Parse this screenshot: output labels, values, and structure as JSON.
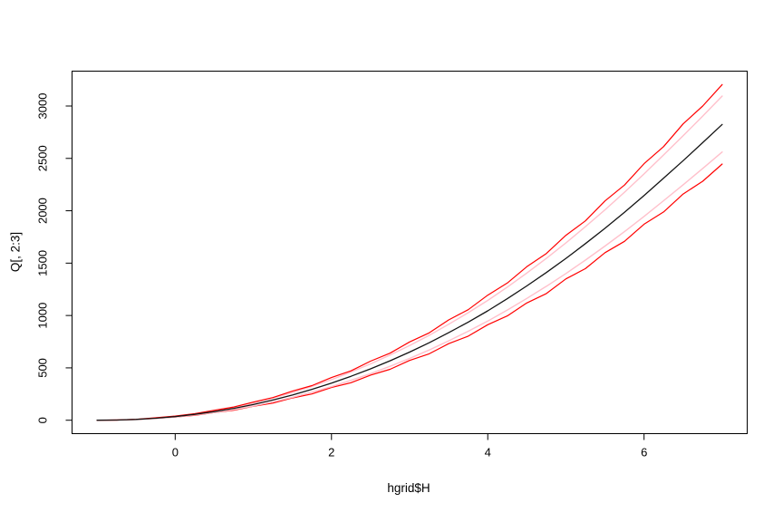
{
  "figure": {
    "background": "#ffffff",
    "box_color": "#000000",
    "tick_color": "#000000"
  },
  "chart_data": {
    "type": "line",
    "title": "",
    "xlabel": "hgrid$H",
    "ylabel": "Q[, 2:3]",
    "x_ticks": [
      0,
      2,
      4,
      6
    ],
    "y_ticks": [
      0,
      500,
      1000,
      1500,
      2000,
      2500,
      3000
    ],
    "xlim": [
      -1.32,
      7.32
    ],
    "ylim": [
      -128,
      3333
    ],
    "grid": false,
    "legend": "none",
    "x": [
      -1.0,
      -0.75,
      -0.5,
      -0.25,
      0.0,
      0.25,
      0.5,
      0.75,
      1.0,
      1.25,
      1.5,
      1.75,
      2.0,
      2.25,
      2.5,
      2.75,
      3.0,
      3.25,
      3.5,
      3.75,
      4.0,
      4.25,
      4.5,
      4.75,
      5.0,
      5.25,
      5.5,
      5.75,
      6.0,
      6.25,
      6.5,
      6.75,
      7.0
    ],
    "series": [
      {
        "name": "lower-outer-quantile",
        "color": "#ff0000",
        "width": 1.2,
        "values": [
          0,
          2,
          7,
          17,
          30,
          47,
          73,
          96,
          133,
          164,
          213,
          251,
          312,
          358,
          431,
          486,
          571,
          634,
          731,
          803,
          912,
          996,
          1120,
          1210,
          1350,
          1448,
          1600,
          1708,
          1872,
          1988,
          2160,
          2282,
          2446
        ]
      },
      {
        "name": "lower-inner-quantile",
        "color": "#ffc0cb",
        "width": 1.4,
        "values": [
          0,
          2,
          7,
          17,
          32,
          51,
          74,
          102,
          136,
          175,
          219,
          268,
          321,
          381,
          445,
          515,
          590,
          671,
          758,
          850,
          947,
          1052,
          1163,
          1279,
          1401,
          1529,
          1663,
          1801,
          1946,
          2096,
          2248,
          2404,
          2561
        ]
      },
      {
        "name": "upper-inner-quantile",
        "color": "#ffc0cb",
        "width": 1.4,
        "values": [
          0,
          2,
          9,
          21,
          38,
          61,
          90,
          124,
          164,
          212,
          264,
          323,
          388,
          460,
          538,
          623,
          713,
          811,
          916,
          1027,
          1144,
          1271,
          1405,
          1545,
          1693,
          1848,
          2009,
          2177,
          2352,
          2533,
          2716,
          2904,
          3095
        ]
      },
      {
        "name": "upper-outer-quantile",
        "color": "#ff0000",
        "width": 1.2,
        "values": [
          0,
          2,
          9,
          23,
          40,
          62,
          95,
          126,
          173,
          216,
          278,
          331,
          408,
          472,
          564,
          640,
          748,
          834,
          958,
          1056,
          1194,
          1310,
          1466,
          1592,
          1766,
          1904,
          2094,
          2245,
          2450,
          2612,
          2829,
          3000,
          3205
        ]
      },
      {
        "name": "center-line",
        "color": "#141414",
        "width": 1.3,
        "values": [
          0,
          2,
          8,
          19,
          35,
          56,
          82,
          113,
          150,
          193,
          241,
          295,
          354,
          420,
          491,
          568,
          651,
          740,
          836,
          937,
          1044,
          1160,
          1282,
          1410,
          1545,
          1686,
          1833,
          1986,
          2146,
          2311,
          2478,
          2650,
          2824
        ]
      }
    ]
  }
}
